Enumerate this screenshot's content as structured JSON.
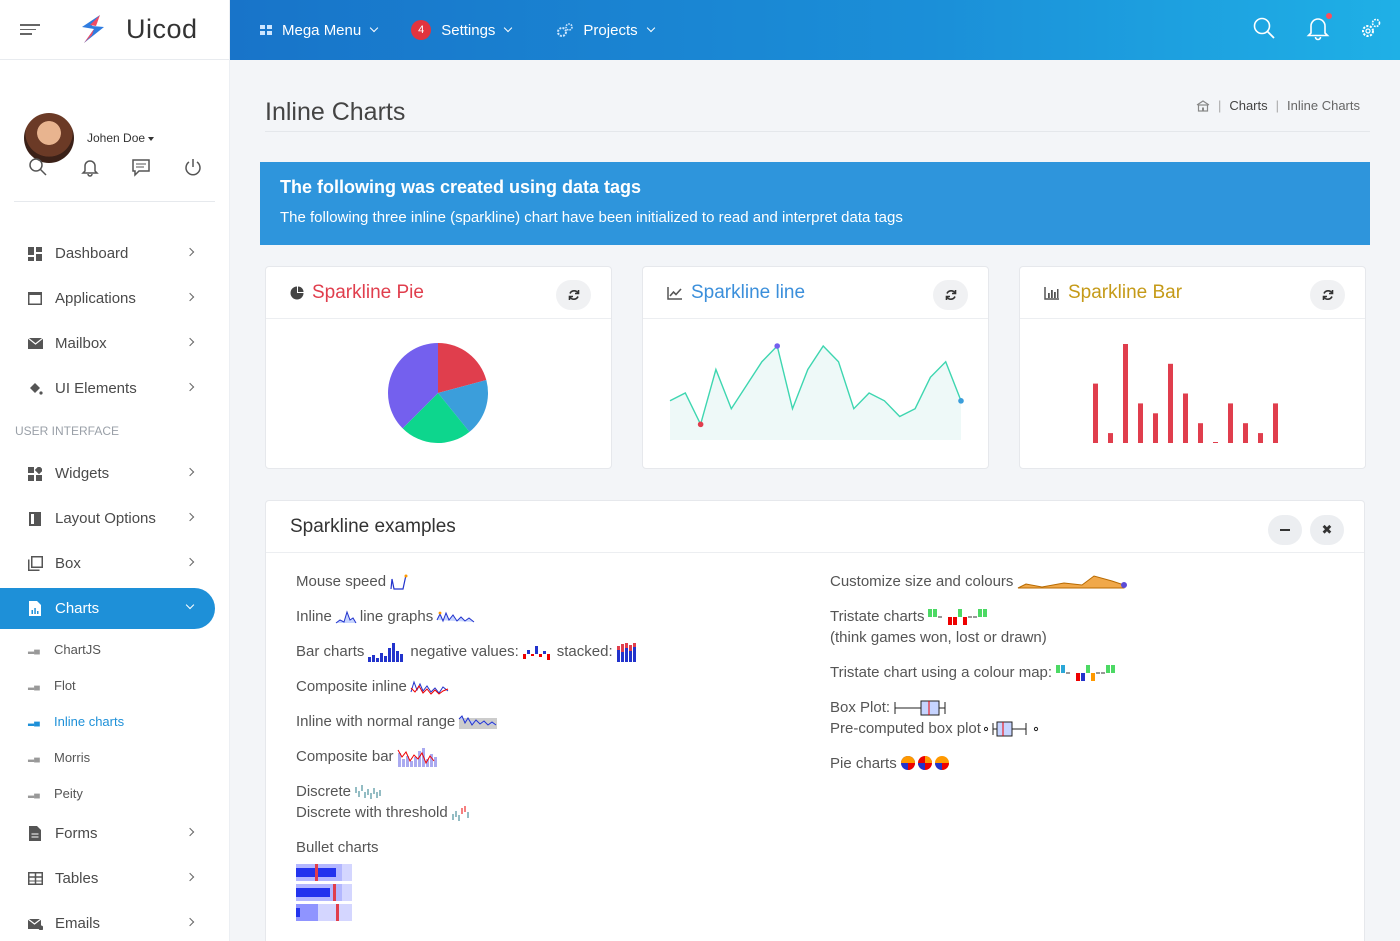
{
  "brand": {
    "name": "Uicod"
  },
  "user": {
    "name": "Johen Doe"
  },
  "sidebar": {
    "items": [
      {
        "label": "Dashboard",
        "icon": "dashboard-icon"
      },
      {
        "label": "Applications",
        "icon": "window-icon"
      },
      {
        "label": "Mailbox",
        "icon": "envelope-icon"
      },
      {
        "label": "UI Elements",
        "icon": "paint-bucket-icon"
      }
    ],
    "section_header": "USER INTERFACE",
    "items2": [
      {
        "label": "Widgets",
        "icon": "widgets-icon"
      },
      {
        "label": "Layout Options",
        "icon": "layout-icon"
      },
      {
        "label": "Box",
        "icon": "box-icon"
      },
      {
        "label": "Charts",
        "icon": "chart-file-icon"
      }
    ],
    "sub_items": [
      "ChartJS",
      "Flot",
      "Inline charts",
      "Morris",
      "Peity"
    ],
    "items3": [
      {
        "label": "Forms",
        "icon": "form-icon"
      },
      {
        "label": "Tables",
        "icon": "table-icon"
      },
      {
        "label": "Emails",
        "icon": "email-icon"
      }
    ]
  },
  "topbar": {
    "mega_menu": "Mega Menu",
    "settings": "Settings",
    "settings_badge": "4",
    "projects": "Projects"
  },
  "page": {
    "title": "Inline Charts",
    "breadcrumb": [
      "Charts",
      "Inline Charts"
    ]
  },
  "callout": {
    "title": "The following was created using data tags",
    "text": "The following three inline (sparkline) chart have been initialized to read and interpret data tags"
  },
  "cards": {
    "pie": {
      "title": "Sparkline Pie",
      "color": "#e03e4d"
    },
    "line": {
      "title": "Sparkline line",
      "color": "#3b8fdb"
    },
    "bar": {
      "title": "Sparkline Bar",
      "color": "#c59a18"
    }
  },
  "chart_data": [
    {
      "type": "pie",
      "title": "Sparkline Pie",
      "values": [
        25,
        22,
        28,
        45
      ],
      "colors": [
        "#e03e4d",
        "#3b9edb",
        "#0dd68d",
        "#7460ee"
      ]
    },
    {
      "type": "line",
      "title": "Sparkline line",
      "values": [
        5,
        6,
        2,
        9,
        4,
        7,
        10,
        12,
        4,
        9,
        12,
        10,
        4,
        6,
        5,
        3,
        4,
        8,
        10,
        5
      ],
      "ylim": [
        0,
        12
      ],
      "color": "#3ed6b0"
    },
    {
      "type": "bar",
      "title": "Sparkline Bar",
      "values": [
        6,
        1,
        10,
        4,
        3,
        8,
        5,
        2,
        0,
        4,
        2,
        1,
        4
      ],
      "ylim": [
        0,
        10
      ],
      "color": "#e03e4d"
    }
  ],
  "examples": {
    "title": "Sparkline examples",
    "left": {
      "mouse_speed": "Mouse speed",
      "inline": "Inline",
      "line_graphs": "line graphs",
      "bar_charts": "Bar charts",
      "negative_values": "negative values:",
      "stacked": "stacked:",
      "composite_inline": "Composite inline",
      "normal_range": "Inline with normal range",
      "composite_bar": "Composite bar",
      "discrete": "Discrete",
      "discrete_threshold": "Discrete with threshold",
      "bullet_charts": "Bullet charts"
    },
    "right": {
      "customize": "Customize size and colours",
      "tristate": "Tristate charts",
      "tristate_note": "(think games won, lost or drawn)",
      "tristate_map": "Tristate chart using a colour map:",
      "box_plot": "Box Plot:",
      "precomputed": "Pre-computed box plot",
      "pie_charts": "Pie charts"
    }
  }
}
